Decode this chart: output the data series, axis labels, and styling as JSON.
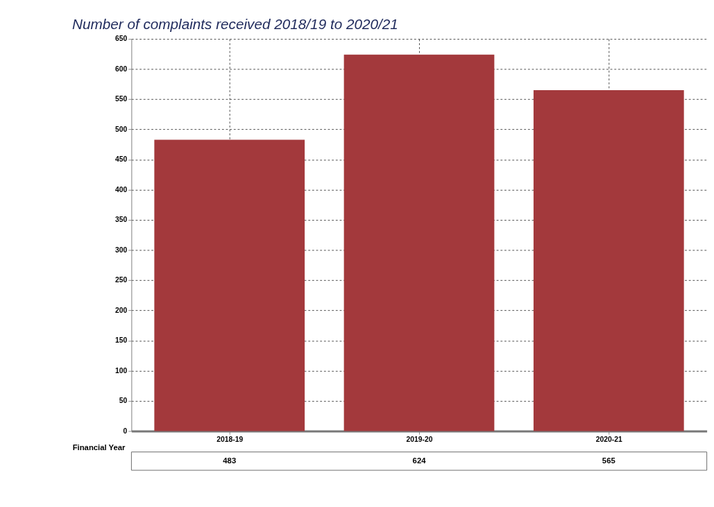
{
  "chart_data": {
    "type": "bar",
    "title": "Number of complaints received 2018/19 to 2020/21",
    "xlabel": "Financial Year",
    "categories": [
      "2018-19",
      "2019-20",
      "2020-21"
    ],
    "values": [
      483,
      624,
      565
    ],
    "color": "#a3393c",
    "ylim": [
      0,
      650
    ],
    "yticks": [
      0,
      50,
      100,
      150,
      200,
      250,
      300,
      350,
      400,
      450,
      500,
      550,
      600,
      650
    ],
    "grid": true,
    "data_labels": true
  }
}
